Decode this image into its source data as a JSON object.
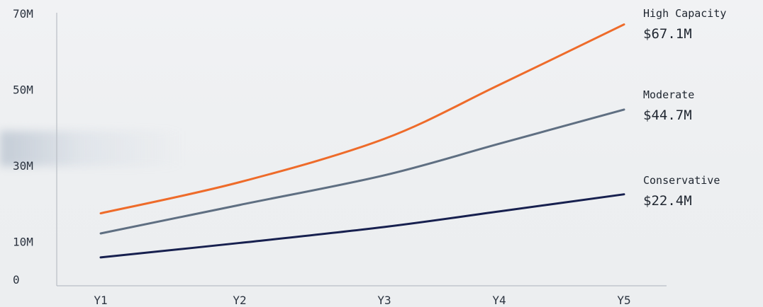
{
  "chart_data": {
    "type": "line",
    "categories": [
      "Y1",
      "Y2",
      "Y3",
      "Y4",
      "Y5"
    ],
    "y_ticks": [
      {
        "label": "0",
        "value": 0
      },
      {
        "label": "10M",
        "value": 10
      },
      {
        "label": "30M",
        "value": 30
      },
      {
        "label": "50M",
        "value": 50
      },
      {
        "label": "70M",
        "value": 70
      }
    ],
    "ylim": [
      0,
      70
    ],
    "grid": false,
    "series": [
      {
        "name": "High Capacity",
        "value_label": "$67.1M",
        "color": "#ee6b2a",
        "values": [
          17.4,
          25.6,
          37.0,
          51.2,
          67.1
        ]
      },
      {
        "name": "Moderate",
        "value_label": "$44.7M",
        "color": "#5f6f82",
        "values": [
          12.1,
          19.6,
          27.4,
          35.7,
          44.7
        ]
      },
      {
        "name": "Conservative",
        "value_label": "$22.4M",
        "color": "#17204f",
        "values": [
          5.8,
          9.6,
          13.8,
          17.9,
          22.4
        ]
      }
    ]
  }
}
